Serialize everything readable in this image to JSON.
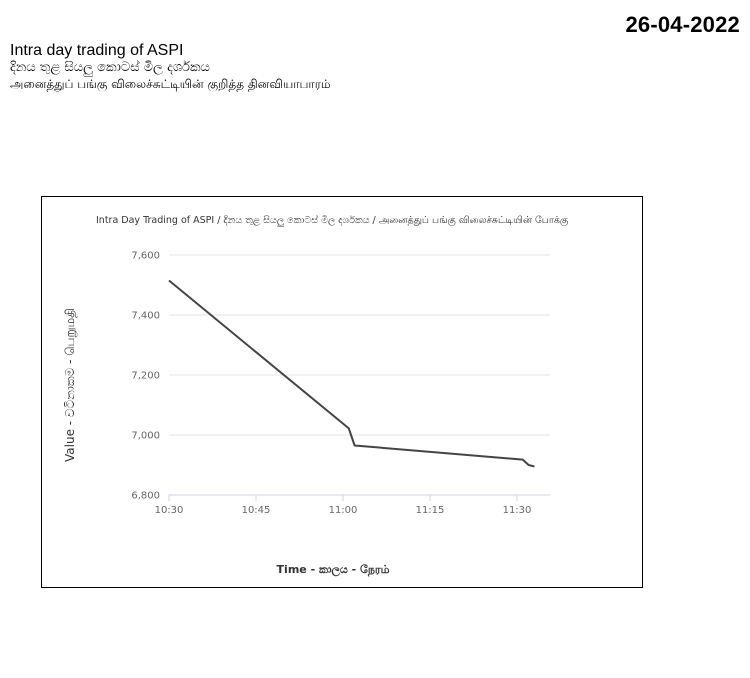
{
  "date": "26-04-2022",
  "heading": {
    "english": "Intra day trading of ASPI",
    "sinhala": "දිනය තුළ සියලු කොටස් මිල දර්ශකය",
    "tamil": "அனைத்துப் பங்கு விலைச்சுட்டியின் குறித்த தினவியாபாரம்"
  },
  "chart_data": {
    "type": "line",
    "title": "Intra Day Trading of ASPI / දිනය තුළ සියලු කොටස් මිල දර්ශකය / அனைத்துப் பங்கு விலைச்சுட்டியின் போக்கு",
    "xlabel": "Time - කාලය - நேரம்",
    "ylabel": "Value - වටිනාකම - பெறுமதி",
    "ylim": [
      6800,
      7600
    ],
    "y_ticks": [
      "6,800",
      "7,000",
      "7,200",
      "7,400",
      "7,600"
    ],
    "x_ticks": [
      "10:30",
      "10:45",
      "11:00",
      "11:15",
      "11:30"
    ],
    "grid": "horizontal",
    "series": [
      {
        "x": [
          "10:30",
          "11:01",
          "11:02",
          "11:31",
          "11:32",
          "11:33"
        ],
        "values": [
          7515,
          7022,
          6965,
          6918,
          6900,
          6895
        ]
      }
    ],
    "line_color": "#444444"
  }
}
